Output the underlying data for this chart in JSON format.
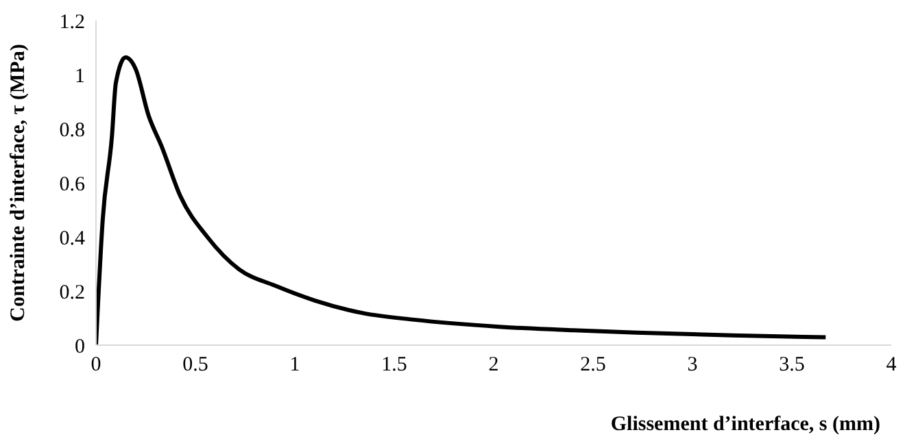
{
  "chart_data": {
    "type": "line",
    "xlabel": "Glissement d’interface, s (mm)",
    "ylabel": "Contrainte d’interface, τ (MPa)",
    "x": [
      0,
      0.034,
      0.08,
      0.1,
      0.149,
      0.2,
      0.264,
      0.33,
      0.425,
      0.56,
      0.72,
      0.9,
      1.1,
      1.345,
      1.6,
      2.03,
      2.4,
      2.72,
      3.2,
      3.67
    ],
    "series": [
      {
        "color": "#000000",
        "values": [
          0,
          0.465,
          0.77,
          0.97,
          1.064,
          1.02,
          0.85,
          0.735,
          0.55,
          0.4,
          0.28,
          0.22,
          0.165,
          0.118,
          0.094,
          0.068,
          0.055,
          0.046,
          0.036,
          0.029
        ]
      }
    ],
    "xlim": [
      0,
      4
    ],
    "xticks": [
      0,
      0.5,
      1,
      1.5,
      2,
      2.5,
      3,
      3.5,
      4
    ],
    "ylim": [
      0,
      1.2
    ],
    "yticks": [
      0,
      0.2,
      0.4,
      0.6,
      0.8,
      1,
      1.2
    ],
    "grid": false,
    "marker": "none",
    "line_style": "solid"
  }
}
